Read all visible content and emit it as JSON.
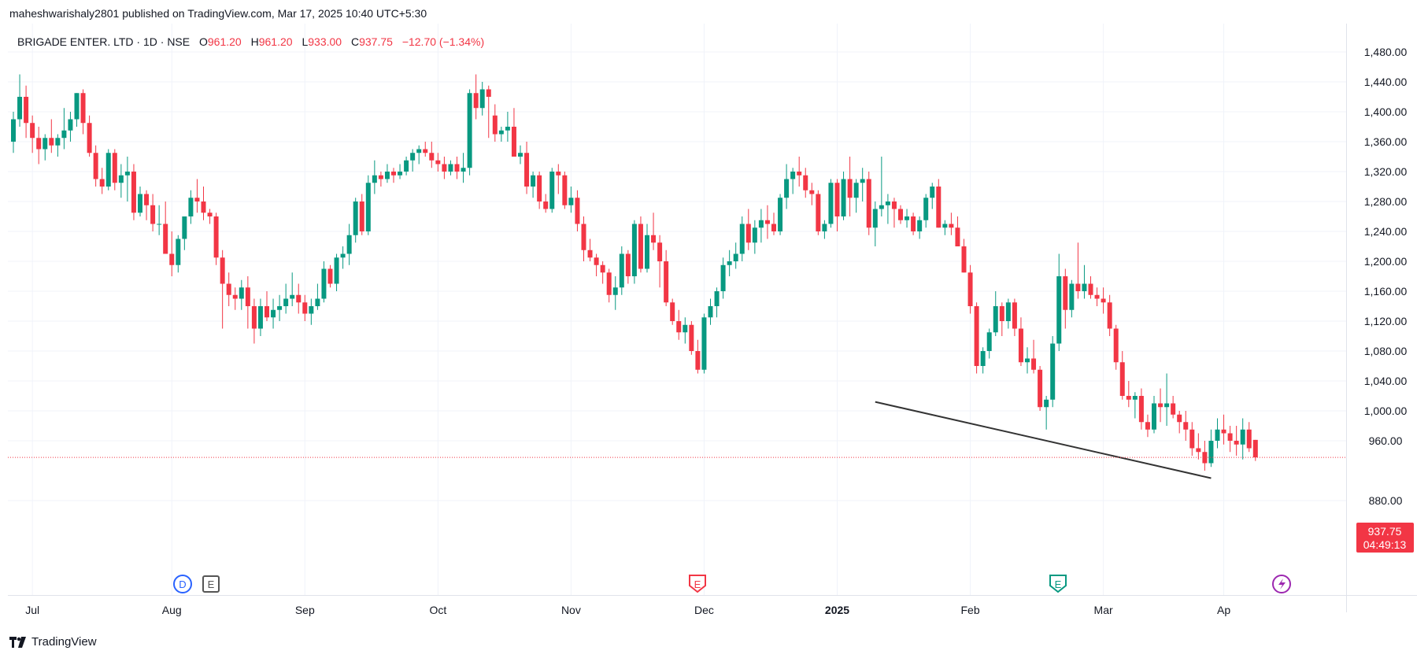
{
  "header": {
    "publisher_line": "maheshwarishaly2801 published on TradingView.com, Mar 17, 2025 10:40 UTC+5:30",
    "symbol": "BRIGADE ENTER. LTD · 1D · NSE",
    "open_label": "O",
    "open_value": "961.20",
    "high_label": "H",
    "high_value": "961.20",
    "low_label": "L",
    "low_value": "933.00",
    "close_label": "C",
    "close_value": "937.75",
    "change": "−12.70 (−1.34%)"
  },
  "price_tag": {
    "price": "937.75",
    "countdown": "04:49:13"
  },
  "brand": "TradingView",
  "colors": {
    "up": "#089981",
    "down": "#f23645",
    "grid": "#f0f3fa",
    "trendline": "#333333",
    "last_price": "#f23645"
  },
  "markers": [
    {
      "type": "dividend",
      "letter": "D",
      "date": "Jul 29"
    },
    {
      "type": "earnings",
      "letter": "E",
      "date": "Jul 31"
    },
    {
      "type": "earnings",
      "letter": "E",
      "date": "Nov 12"
    },
    {
      "type": "earnings",
      "letter": "E",
      "date": "Jan 31"
    },
    {
      "type": "split",
      "icon": "lightning-icon",
      "date": "Mar 17"
    }
  ],
  "chart_data": {
    "type": "candlestick",
    "y_ticks": [
      "1,480.00",
      "1,440.00",
      "1,400.00",
      "1,360.00",
      "1,320.00",
      "1,280.00",
      "1,240.00",
      "1,200.00",
      "1,160.00",
      "1,120.00",
      "1,080.00",
      "1,040.00",
      "1,000.00",
      "960.00",
      "880.00"
    ],
    "y_range": [
      857,
      1502
    ],
    "x_ticks": [
      "Jul",
      "Aug",
      "Sep",
      "Oct",
      "Nov",
      "Dec",
      "2025",
      "Feb",
      "Mar",
      "Ap"
    ],
    "x_tick_index": [
      3,
      25,
      46,
      67,
      88,
      109,
      130,
      151,
      172,
      191
    ],
    "last_price": 937.75,
    "trendline": {
      "from": {
        "index": 136,
        "price": 1012
      },
      "to": {
        "index": 189,
        "price": 910
      }
    },
    "candles": [
      [
        1360,
        1400,
        1345,
        1390
      ],
      [
        1390,
        1450,
        1380,
        1420
      ],
      [
        1420,
        1435,
        1365,
        1385
      ],
      [
        1385,
        1395,
        1345,
        1365
      ],
      [
        1365,
        1380,
        1330,
        1350
      ],
      [
        1350,
        1370,
        1335,
        1365
      ],
      [
        1365,
        1390,
        1345,
        1355
      ],
      [
        1355,
        1370,
        1340,
        1365
      ],
      [
        1365,
        1405,
        1350,
        1375
      ],
      [
        1375,
        1400,
        1360,
        1390
      ],
      [
        1390,
        1425,
        1380,
        1425
      ],
      [
        1425,
        1430,
        1370,
        1385
      ],
      [
        1385,
        1395,
        1340,
        1345
      ],
      [
        1345,
        1355,
        1300,
        1310
      ],
      [
        1310,
        1325,
        1290,
        1300
      ],
      [
        1300,
        1350,
        1295,
        1345
      ],
      [
        1345,
        1350,
        1295,
        1305
      ],
      [
        1305,
        1330,
        1285,
        1315
      ],
      [
        1315,
        1340,
        1280,
        1320
      ],
      [
        1320,
        1330,
        1255,
        1265
      ],
      [
        1265,
        1300,
        1260,
        1290
      ],
      [
        1290,
        1295,
        1255,
        1275
      ],
      [
        1275,
        1290,
        1240,
        1250
      ],
      [
        1250,
        1275,
        1235,
        1250
      ],
      [
        1250,
        1280,
        1210,
        1210
      ],
      [
        1210,
        1240,
        1180,
        1195
      ],
      [
        1195,
        1235,
        1185,
        1230
      ],
      [
        1230,
        1260,
        1215,
        1260
      ],
      [
        1260,
        1295,
        1250,
        1285
      ],
      [
        1285,
        1310,
        1265,
        1280
      ],
      [
        1280,
        1300,
        1255,
        1265
      ],
      [
        1265,
        1270,
        1250,
        1260
      ],
      [
        1260,
        1265,
        1195,
        1205
      ],
      [
        1205,
        1215,
        1110,
        1170
      ],
      [
        1170,
        1185,
        1140,
        1155
      ],
      [
        1155,
        1165,
        1135,
        1150
      ],
      [
        1150,
        1175,
        1135,
        1165
      ],
      [
        1165,
        1180,
        1110,
        1140
      ],
      [
        1140,
        1150,
        1090,
        1110
      ],
      [
        1110,
        1150,
        1100,
        1140
      ],
      [
        1140,
        1160,
        1120,
        1125
      ],
      [
        1125,
        1150,
        1110,
        1135
      ],
      [
        1135,
        1155,
        1120,
        1140
      ],
      [
        1140,
        1170,
        1130,
        1150
      ],
      [
        1150,
        1185,
        1140,
        1155
      ],
      [
        1155,
        1170,
        1130,
        1145
      ],
      [
        1145,
        1155,
        1120,
        1130
      ],
      [
        1130,
        1150,
        1115,
        1140
      ],
      [
        1140,
        1170,
        1135,
        1150
      ],
      [
        1150,
        1200,
        1145,
        1190
      ],
      [
        1190,
        1195,
        1165,
        1170
      ],
      [
        1170,
        1210,
        1160,
        1205
      ],
      [
        1205,
        1220,
        1190,
        1210
      ],
      [
        1210,
        1250,
        1195,
        1235
      ],
      [
        1235,
        1285,
        1225,
        1280
      ],
      [
        1280,
        1290,
        1235,
        1240
      ],
      [
        1240,
        1315,
        1235,
        1305
      ],
      [
        1305,
        1335,
        1290,
        1315
      ],
      [
        1315,
        1320,
        1300,
        1310
      ],
      [
        1310,
        1330,
        1305,
        1320
      ],
      [
        1320,
        1325,
        1305,
        1315
      ],
      [
        1315,
        1330,
        1310,
        1320
      ],
      [
        1320,
        1340,
        1315,
        1335
      ],
      [
        1335,
        1350,
        1320,
        1345
      ],
      [
        1345,
        1355,
        1330,
        1350
      ],
      [
        1350,
        1360,
        1340,
        1345
      ],
      [
        1345,
        1360,
        1325,
        1335
      ],
      [
        1335,
        1345,
        1320,
        1330
      ],
      [
        1330,
        1340,
        1310,
        1320
      ],
      [
        1320,
        1335,
        1315,
        1330
      ],
      [
        1330,
        1340,
        1310,
        1320
      ],
      [
        1320,
        1345,
        1305,
        1325
      ],
      [
        1325,
        1430,
        1315,
        1425
      ],
      [
        1425,
        1450,
        1390,
        1405
      ],
      [
        1405,
        1440,
        1395,
        1430
      ],
      [
        1430,
        1435,
        1365,
        1420
      ],
      [
        1395,
        1410,
        1360,
        1370
      ],
      [
        1370,
        1380,
        1360,
        1375
      ],
      [
        1375,
        1400,
        1360,
        1380
      ],
      [
        1380,
        1405,
        1340,
        1340
      ],
      [
        1340,
        1355,
        1330,
        1345
      ],
      [
        1345,
        1360,
        1290,
        1300
      ],
      [
        1300,
        1320,
        1285,
        1315
      ],
      [
        1315,
        1320,
        1270,
        1280
      ],
      [
        1280,
        1290,
        1265,
        1270
      ],
      [
        1270,
        1325,
        1265,
        1320
      ],
      [
        1320,
        1330,
        1290,
        1315
      ],
      [
        1315,
        1320,
        1270,
        1275
      ],
      [
        1275,
        1300,
        1265,
        1285
      ],
      [
        1285,
        1295,
        1240,
        1250
      ],
      [
        1250,
        1260,
        1200,
        1215
      ],
      [
        1215,
        1230,
        1200,
        1205
      ],
      [
        1205,
        1210,
        1180,
        1195
      ],
      [
        1195,
        1200,
        1170,
        1185
      ],
      [
        1185,
        1190,
        1145,
        1155
      ],
      [
        1155,
        1180,
        1135,
        1165
      ],
      [
        1165,
        1220,
        1155,
        1210
      ],
      [
        1210,
        1215,
        1170,
        1180
      ],
      [
        1180,
        1255,
        1170,
        1250
      ],
      [
        1250,
        1260,
        1185,
        1190
      ],
      [
        1190,
        1250,
        1185,
        1235
      ],
      [
        1235,
        1265,
        1215,
        1225
      ],
      [
        1225,
        1235,
        1165,
        1200
      ],
      [
        1200,
        1215,
        1140,
        1145
      ],
      [
        1145,
        1150,
        1115,
        1120
      ],
      [
        1120,
        1135,
        1095,
        1105
      ],
      [
        1105,
        1125,
        1090,
        1115
      ],
      [
        1115,
        1120,
        1075,
        1080
      ],
      [
        1080,
        1095,
        1050,
        1055
      ],
      [
        1055,
        1130,
        1050,
        1125
      ],
      [
        1125,
        1150,
        1115,
        1140
      ],
      [
        1140,
        1165,
        1125,
        1160
      ],
      [
        1160,
        1205,
        1150,
        1195
      ],
      [
        1195,
        1215,
        1180,
        1200
      ],
      [
        1200,
        1225,
        1190,
        1210
      ],
      [
        1210,
        1260,
        1200,
        1250
      ],
      [
        1250,
        1270,
        1215,
        1225
      ],
      [
        1225,
        1255,
        1210,
        1245
      ],
      [
        1245,
        1270,
        1225,
        1255
      ],
      [
        1255,
        1275,
        1230,
        1250
      ],
      [
        1250,
        1265,
        1235,
        1240
      ],
      [
        1240,
        1290,
        1235,
        1285
      ],
      [
        1285,
        1330,
        1270,
        1310
      ],
      [
        1310,
        1325,
        1290,
        1320
      ],
      [
        1320,
        1340,
        1300,
        1315
      ],
      [
        1315,
        1325,
        1285,
        1295
      ],
      [
        1295,
        1305,
        1275,
        1290
      ],
      [
        1290,
        1295,
        1235,
        1240
      ],
      [
        1240,
        1255,
        1230,
        1250
      ],
      [
        1250,
        1310,
        1245,
        1305
      ],
      [
        1305,
        1310,
        1240,
        1260
      ],
      [
        1260,
        1320,
        1255,
        1310
      ],
      [
        1310,
        1340,
        1260,
        1285
      ],
      [
        1285,
        1310,
        1265,
        1305
      ],
      [
        1305,
        1325,
        1280,
        1310
      ],
      [
        1310,
        1320,
        1235,
        1245
      ],
      [
        1245,
        1280,
        1220,
        1270
      ],
      [
        1270,
        1340,
        1260,
        1275
      ],
      [
        1275,
        1290,
        1250,
        1280
      ],
      [
        1280,
        1285,
        1245,
        1270
      ],
      [
        1270,
        1275,
        1250,
        1255
      ],
      [
        1255,
        1270,
        1245,
        1260
      ],
      [
        1260,
        1265,
        1235,
        1240
      ],
      [
        1240,
        1260,
        1230,
        1255
      ],
      [
        1255,
        1290,
        1245,
        1285
      ],
      [
        1285,
        1305,
        1270,
        1300
      ],
      [
        1300,
        1310,
        1245,
        1245
      ],
      [
        1245,
        1255,
        1235,
        1250
      ],
      [
        1250,
        1265,
        1235,
        1245
      ],
      [
        1245,
        1260,
        1225,
        1220
      ],
      [
        1220,
        1230,
        1185,
        1185
      ],
      [
        1185,
        1195,
        1130,
        1140
      ],
      [
        1140,
        1145,
        1050,
        1060
      ],
      [
        1060,
        1085,
        1050,
        1080
      ],
      [
        1080,
        1110,
        1070,
        1105
      ],
      [
        1105,
        1160,
        1100,
        1140
      ],
      [
        1140,
        1145,
        1100,
        1120
      ],
      [
        1120,
        1150,
        1110,
        1145
      ],
      [
        1145,
        1150,
        1100,
        1110
      ],
      [
        1110,
        1125,
        1060,
        1065
      ],
      [
        1065,
        1085,
        1050,
        1070
      ],
      [
        1070,
        1095,
        1050,
        1055
      ],
      [
        1055,
        1060,
        1000,
        1005
      ],
      [
        1005,
        1020,
        975,
        1015
      ],
      [
        1015,
        1100,
        1005,
        1090
      ],
      [
        1090,
        1210,
        1080,
        1180
      ],
      [
        1180,
        1190,
        1110,
        1135
      ],
      [
        1135,
        1175,
        1125,
        1170
      ],
      [
        1170,
        1225,
        1150,
        1160
      ],
      [
        1160,
        1195,
        1150,
        1170
      ],
      [
        1170,
        1180,
        1150,
        1155
      ],
      [
        1155,
        1165,
        1140,
        1150
      ],
      [
        1150,
        1165,
        1130,
        1145
      ],
      [
        1145,
        1155,
        1100,
        1110
      ],
      [
        1110,
        1115,
        1055,
        1065
      ],
      [
        1065,
        1080,
        1015,
        1020
      ],
      [
        1020,
        1040,
        1005,
        1015
      ],
      [
        1015,
        1025,
        990,
        1020
      ],
      [
        1020,
        1030,
        975,
        985
      ],
      [
        985,
        995,
        965,
        975
      ],
      [
        975,
        1020,
        970,
        1010
      ],
      [
        1010,
        1030,
        985,
        1005
      ],
      [
        1005,
        1050,
        980,
        1010
      ],
      [
        1010,
        1020,
        990,
        995
      ],
      [
        995,
        1000,
        970,
        985
      ],
      [
        985,
        1000,
        960,
        975
      ],
      [
        975,
        985,
        940,
        950
      ],
      [
        950,
        970,
        935,
        945
      ],
      [
        945,
        960,
        920,
        930
      ],
      [
        930,
        975,
        925,
        960
      ],
      [
        960,
        990,
        950,
        975
      ],
      [
        975,
        995,
        955,
        970
      ],
      [
        970,
        980,
        945,
        960
      ],
      [
        960,
        980,
        940,
        955
      ],
      [
        955,
        990,
        935,
        975
      ],
      [
        975,
        985,
        945,
        950
      ],
      [
        961.2,
        961.2,
        933,
        937.75
      ]
    ]
  }
}
